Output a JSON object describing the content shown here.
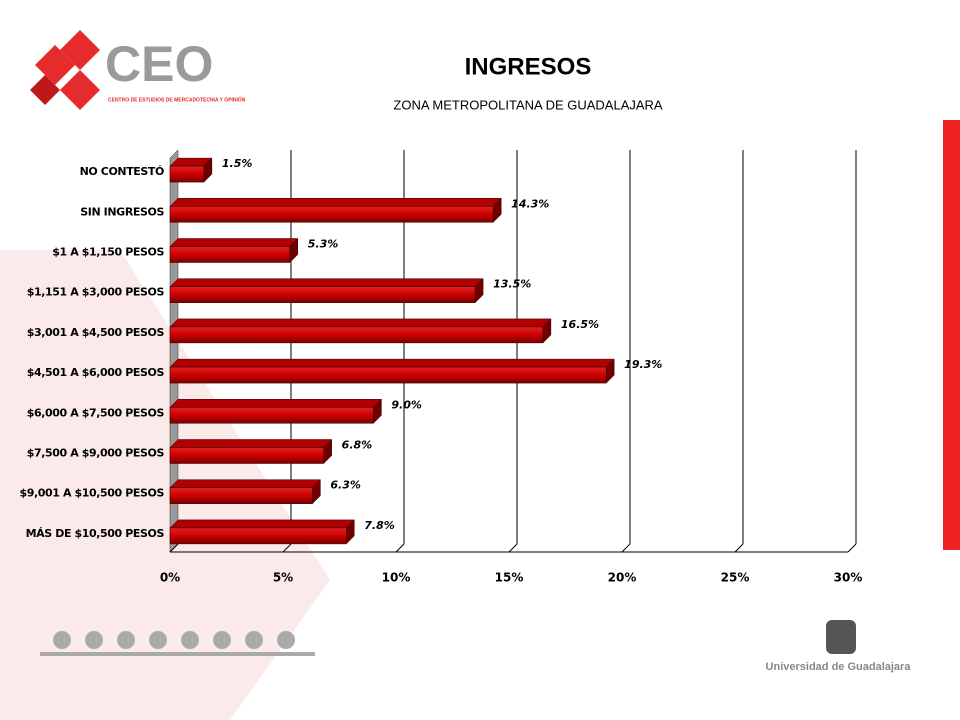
{
  "branding": {
    "logo": "CEO",
    "logo_subtitle": "CENTRO DE ESTUDIOS DE MERCADOTECNIA Y OPINIÓN",
    "university": "Universidad de Guadalajara"
  },
  "chart_data": {
    "type": "hbar",
    "title": "INGRESOS",
    "subtitle": "ZONA METROPOLITANA DE GUADALAJARA",
    "categories": [
      "NO CONTESTÓ",
      "SIN INGRESOS",
      "$1 A $1,150 PESOS",
      "$1,151 A $3,000 PESOS",
      "$3,001 A $4,500 PESOS",
      "$4,501 A $6,000 PESOS",
      "$6,000 A $7,500 PESOS",
      "$7,500 A $9,000 PESOS",
      "$9,001 A $10,500 PESOS",
      "MÁS DE $10,500 PESOS"
    ],
    "values": [
      1.5,
      14.3,
      5.3,
      13.5,
      16.5,
      19.3,
      9.0,
      6.8,
      6.3,
      7.8
    ],
    "value_labels": [
      "1.5%",
      "14.3%",
      "5.3%",
      "13.5%",
      "16.5%",
      "19.3%",
      "9.0%",
      "6.8%",
      "6.3%",
      "7.8%"
    ],
    "color": "#cc0000",
    "xlim": [
      0,
      30
    ],
    "xticks": [
      {
        "value": 0,
        "label": "0%"
      },
      {
        "value": 5,
        "label": "5%"
      },
      {
        "value": 10,
        "label": "10%"
      },
      {
        "value": 15,
        "label": "15%"
      },
      {
        "value": 20,
        "label": "20%"
      },
      {
        "value": 25,
        "label": "25%"
      },
      {
        "value": 30,
        "label": "30%"
      }
    ],
    "grid": true
  }
}
